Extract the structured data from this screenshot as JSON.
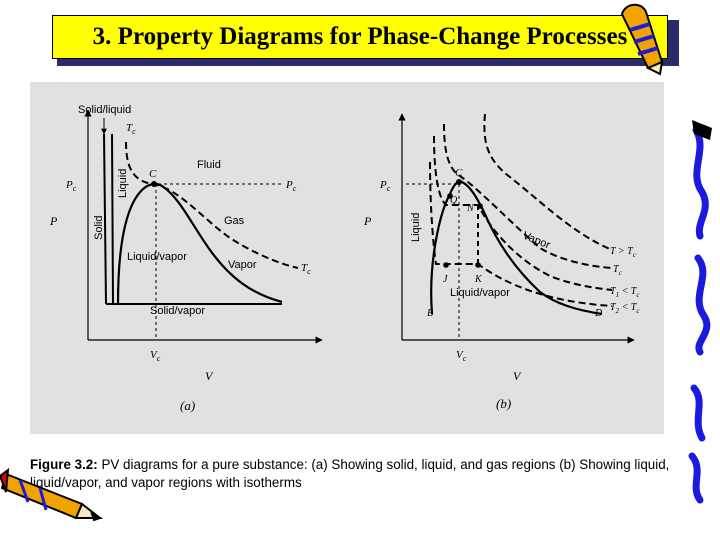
{
  "slide": {
    "title": "3. Property Diagrams for Phase-Change Processes"
  },
  "caption": {
    "label": "Figure 3.2:",
    "text": "PV diagrams for a pure substance: (a) Showing solid, liquid, and gas regions (b) Showing liquid, liquid/vapor, and vapor regions with isotherms"
  },
  "diagram_a": {
    "solid_liquid": "Solid/liquid",
    "tc_top": "T",
    "tc_top_sub": "c",
    "liquid": "Liquid",
    "solid": "Solid",
    "pc": "P",
    "pc_sub": "c",
    "p_axis": "P",
    "critical": "C",
    "fluid": "Fluid",
    "pc_right": "P",
    "pc_right_sub": "c",
    "gas": "Gas",
    "liquid_vapor": "Liquid/vapor",
    "vapor": "Vapor",
    "tc_right": "T",
    "tc_right_sub": "c",
    "solid_vapor": "Solid/vapor",
    "vc": "V",
    "vc_sub": "c",
    "v_axis": "V",
    "panel_label": "(a)"
  },
  "diagram_b": {
    "pc": "P",
    "pc_sub": "c",
    "p_axis": "P",
    "liquid": "Liquid",
    "critical": "C",
    "q": "Q",
    "n": "N",
    "vapor": "Vapor",
    "j": "J",
    "k": "K",
    "liquid_vapor": "Liquid/vapor",
    "b": "B",
    "d": "D",
    "t_gt": "T > T",
    "t_gt_sub": "c",
    "tc": "T",
    "tc_sub": "c",
    "t1": "T",
    "t1_sub": "1",
    "t1_rel": " < T",
    "t1_rel_sub": "c",
    "t2": "T",
    "t2_sub": "2",
    "t2_rel": " < T",
    "t2_rel_sub": "c",
    "vc": "V",
    "vc_sub": "c",
    "v_axis": "V",
    "panel_label": "(b)"
  },
  "colors": {
    "title_bg": "#ffff00",
    "title_shadow": "#2b2b6b",
    "panel_bg": "#e1e1e1",
    "decor_blue": "#1b1be0"
  }
}
